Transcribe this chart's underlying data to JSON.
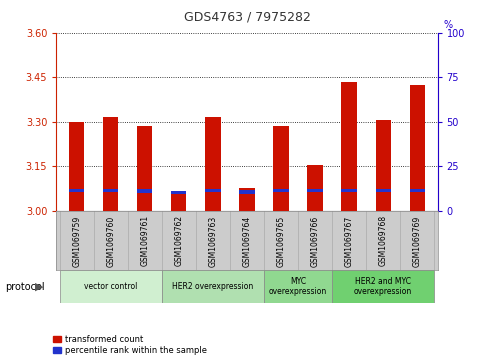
{
  "title": "GDS4763 / 7975282",
  "samples": [
    "GSM1069759",
    "GSM1069760",
    "GSM1069761",
    "GSM1069762",
    "GSM1069763",
    "GSM1069764",
    "GSM1069765",
    "GSM1069766",
    "GSM1069767",
    "GSM1069768",
    "GSM1069769"
  ],
  "red_tops": [
    3.3,
    3.315,
    3.285,
    3.06,
    3.315,
    3.075,
    3.285,
    3.155,
    3.435,
    3.305,
    3.425
  ],
  "blue_bottom": [
    3.062,
    3.062,
    3.06,
    3.055,
    3.062,
    3.057,
    3.062,
    3.062,
    3.062,
    3.062,
    3.062
  ],
  "blue_top": [
    3.074,
    3.074,
    3.072,
    3.065,
    3.074,
    3.069,
    3.072,
    3.074,
    3.072,
    3.072,
    3.072
  ],
  "y_min": 3.0,
  "y_max": 3.6,
  "y_ticks_left": [
    3.0,
    3.15,
    3.3,
    3.45,
    3.6
  ],
  "y_ticks_right": [
    0,
    25,
    50,
    75,
    100
  ],
  "protocol_groups": [
    {
      "label": "vector control",
      "start": 0,
      "end": 2,
      "color": "#d0efd0"
    },
    {
      "label": "HER2 overexpression",
      "start": 3,
      "end": 5,
      "color": "#b0e0b0"
    },
    {
      "label": "MYC\noverexpression",
      "start": 6,
      "end": 7,
      "color": "#90d890"
    },
    {
      "label": "HER2 and MYC\noverexpression",
      "start": 8,
      "end": 10,
      "color": "#70d070"
    }
  ],
  "bar_color_red": "#cc1100",
  "bar_color_blue": "#2233cc",
  "bar_width": 0.45,
  "legend_red": "transformed count",
  "legend_blue": "percentile rank within the sample",
  "left_tick_color": "#cc2200",
  "right_tick_color": "#2200cc",
  "grid_color": "#000000",
  "sample_label_bg": "#cccccc",
  "sample_divider_color": "#aaaaaa"
}
